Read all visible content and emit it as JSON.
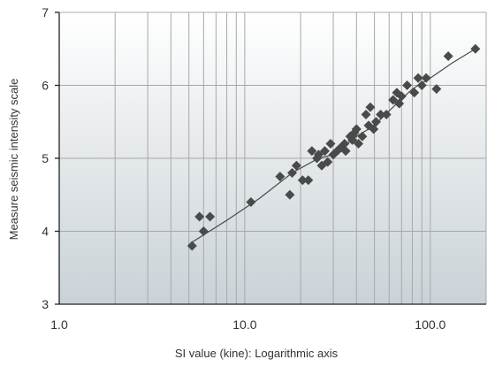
{
  "chart_data": {
    "type": "scatter",
    "title": "",
    "xlabel": "SI value (kine): Logarithmic axis",
    "ylabel": "Measure seismic intensity scale",
    "x_scale": "log",
    "xlim": [
      1.0,
      200.0
    ],
    "ylim": [
      3,
      7
    ],
    "x_tick_values": [
      1,
      10,
      100
    ],
    "x_tick_labels": [
      "1.0",
      "10.0",
      "100.0"
    ],
    "y_tick_values": [
      3,
      4,
      5,
      6,
      7
    ],
    "y_tick_labels": [
      "3",
      "4",
      "5",
      "6",
      "7"
    ],
    "grid": true,
    "legend": "none",
    "colors": {
      "plot_top": "#ffffff",
      "plot_bottom": "#c9d2d7",
      "grid": "#a8a8a8",
      "marker": "#4a4a4a",
      "line": "#4a4a4a"
    },
    "series": [
      {
        "marker": "diamond",
        "points": [
          [
            5.2,
            3.8
          ],
          [
            5.7,
            4.2
          ],
          [
            6.0,
            4.0
          ],
          [
            6.5,
            4.2
          ],
          [
            10.8,
            4.4
          ],
          [
            15.5,
            4.75
          ],
          [
            17.5,
            4.5
          ],
          [
            18.0,
            4.8
          ],
          [
            19.0,
            4.9
          ],
          [
            20.5,
            4.7
          ],
          [
            22.0,
            4.7
          ],
          [
            23.0,
            5.1
          ],
          [
            24.5,
            5.0
          ],
          [
            25.0,
            5.05
          ],
          [
            26.0,
            4.9
          ],
          [
            27.0,
            5.1
          ],
          [
            28.0,
            4.95
          ],
          [
            29.0,
            5.2
          ],
          [
            30.0,
            5.05
          ],
          [
            31.5,
            5.1
          ],
          [
            33.0,
            5.15
          ],
          [
            34.5,
            5.2
          ],
          [
            35.0,
            5.1
          ],
          [
            37.0,
            5.3
          ],
          [
            38.0,
            5.25
          ],
          [
            39.0,
            5.35
          ],
          [
            40.0,
            5.4
          ],
          [
            41.0,
            5.2
          ],
          [
            43.0,
            5.3
          ],
          [
            45.0,
            5.6
          ],
          [
            46.5,
            5.45
          ],
          [
            47.5,
            5.7
          ],
          [
            49.5,
            5.4
          ],
          [
            51.0,
            5.5
          ],
          [
            54.0,
            5.6
          ],
          [
            58.0,
            5.6
          ],
          [
            63.0,
            5.8
          ],
          [
            66.0,
            5.9
          ],
          [
            68.0,
            5.75
          ],
          [
            70.0,
            5.85
          ],
          [
            75.0,
            6.0
          ],
          [
            82.0,
            5.9
          ],
          [
            86.0,
            6.1
          ],
          [
            90.0,
            6.0
          ],
          [
            95.0,
            6.1
          ],
          [
            108.0,
            5.95
          ],
          [
            125.0,
            6.4
          ],
          [
            175.0,
            6.5
          ]
        ]
      }
    ],
    "trend_line": [
      [
        5.2,
        3.85
      ],
      [
        8.0,
        4.15
      ],
      [
        12.0,
        4.45
      ],
      [
        18.0,
        4.8
      ],
      [
        25.0,
        5.0
      ],
      [
        30.0,
        5.05
      ],
      [
        40.0,
        5.3
      ],
      [
        50.0,
        5.45
      ],
      [
        60.0,
        5.65
      ],
      [
        80.0,
        5.95
      ],
      [
        100.0,
        6.1
      ],
      [
        130.0,
        6.3
      ],
      [
        175.0,
        6.5
      ]
    ]
  }
}
